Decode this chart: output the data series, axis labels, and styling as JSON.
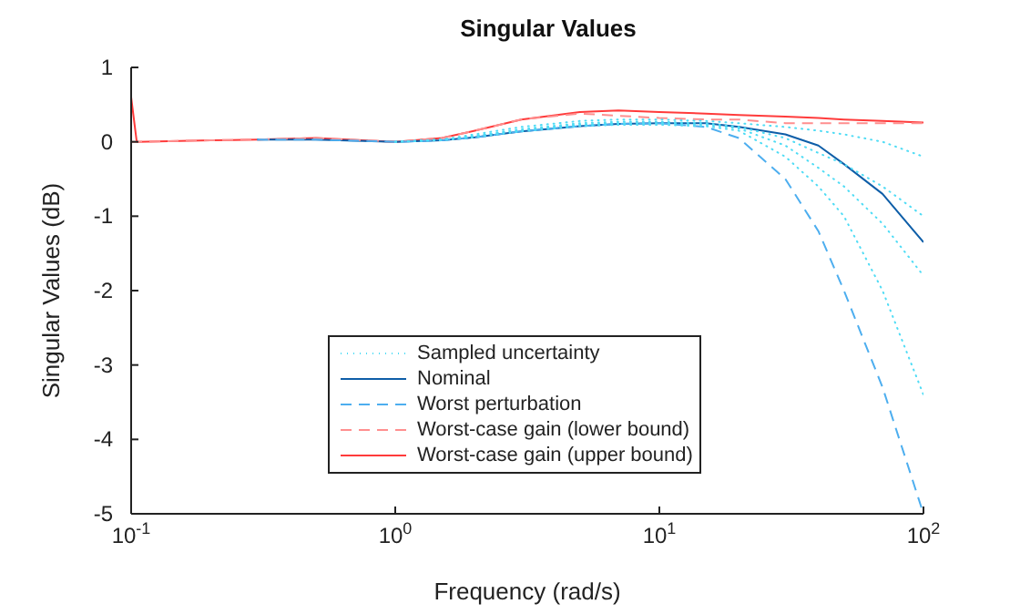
{
  "chart_data": {
    "type": "line",
    "title": "Singular Values",
    "xlabel": "Frequency (rad/s)",
    "ylabel": "Singular Values (dB)",
    "log": "x",
    "xlim": [
      0.1,
      100
    ],
    "xticks": [
      {
        "value": 0.1,
        "label": "10$^{-1}$"
      },
      {
        "value": 1,
        "label": "10$^{0}$"
      },
      {
        "value": 10,
        "label": "10$^{1}$"
      },
      {
        "value": 100,
        "label": "10$^{2}$"
      }
    ],
    "ylim": [
      -5,
      1
    ],
    "yticks": [
      -5,
      -4,
      -3,
      -2,
      -1,
      0,
      1
    ],
    "grid": false,
    "legend": "bottom",
    "marker": "none",
    "x": [
      0.1,
      0.105,
      0.2,
      0.3,
      0.5,
      1,
      1.5,
      2,
      3,
      5,
      7,
      10,
      15,
      20,
      30,
      40,
      50,
      70,
      100
    ],
    "series": [
      {
        "name": "Sampled uncertainty",
        "color": "#4fdcf5",
        "line_style": "dotted",
        "values": [
          null,
          null,
          null,
          null,
          null,
          0,
          0.03,
          0.1,
          0.2,
          0.28,
          0.3,
          0.3,
          0.28,
          0.25,
          0.2,
          0.15,
          0.1,
          0,
          -0.2
        ]
      },
      {
        "color": "#4fdcf5",
        "line_style": "dotted",
        "values": [
          null,
          null,
          null,
          null,
          null,
          0,
          0.03,
          0.08,
          0.17,
          0.25,
          0.27,
          0.27,
          0.25,
          0.2,
          0.05,
          -0.15,
          -0.3,
          -0.6,
          -1.0
        ]
      },
      {
        "color": "#4fdcf5",
        "line_style": "dotted",
        "values": [
          null,
          null,
          null,
          null,
          null,
          0,
          0.03,
          0.08,
          0.16,
          0.23,
          0.25,
          0.25,
          0.23,
          0.18,
          -0.05,
          -0.35,
          -0.6,
          -1.1,
          -1.8
        ]
      },
      {
        "color": "#4fdcf5",
        "line_style": "dotted",
        "values": [
          null,
          null,
          null,
          null,
          null,
          0,
          0.02,
          0.06,
          0.14,
          0.21,
          0.23,
          0.23,
          0.21,
          0.15,
          -0.2,
          -0.6,
          -1.0,
          -2.0,
          -3.4
        ]
      },
      {
        "name": "Nominal",
        "color": "#0e5ea8",
        "line_style": "solid",
        "values": [
          null,
          null,
          null,
          0.03,
          0.03,
          0,
          0.02,
          0.06,
          0.14,
          0.21,
          0.24,
          0.25,
          0.25,
          0.2,
          0.1,
          -0.05,
          -0.3,
          -0.7,
          -1.35
        ]
      },
      {
        "name": "Worst perturbation",
        "color": "#4daeef",
        "line_style": "dashed",
        "values": [
          null,
          null,
          null,
          0.03,
          0.03,
          0,
          0.02,
          0.06,
          0.14,
          0.21,
          0.24,
          0.25,
          0.2,
          0.05,
          -0.5,
          -1.2,
          -2.0,
          -3.3,
          -5.0
        ]
      },
      {
        "name": "Worst-case gain (lower bound)",
        "color": "#ff8f8f",
        "line_style": "dashed",
        "values": [
          0,
          0,
          0.02,
          0.03,
          0.05,
          0,
          0.05,
          0.15,
          0.3,
          0.38,
          0.35,
          0.32,
          0.3,
          0.3,
          0.25,
          0.25,
          0.25,
          0.25,
          0.25
        ]
      },
      {
        "name": "Worst-case gain (upper bound)",
        "color": "#ff3b3b",
        "line_style": "solid",
        "values": [
          0.6,
          0,
          0.02,
          0.03,
          0.05,
          0,
          0.05,
          0.15,
          0.3,
          0.4,
          0.42,
          0.4,
          0.38,
          0.36,
          0.34,
          0.32,
          0.3,
          0.28,
          0.26
        ]
      }
    ]
  }
}
